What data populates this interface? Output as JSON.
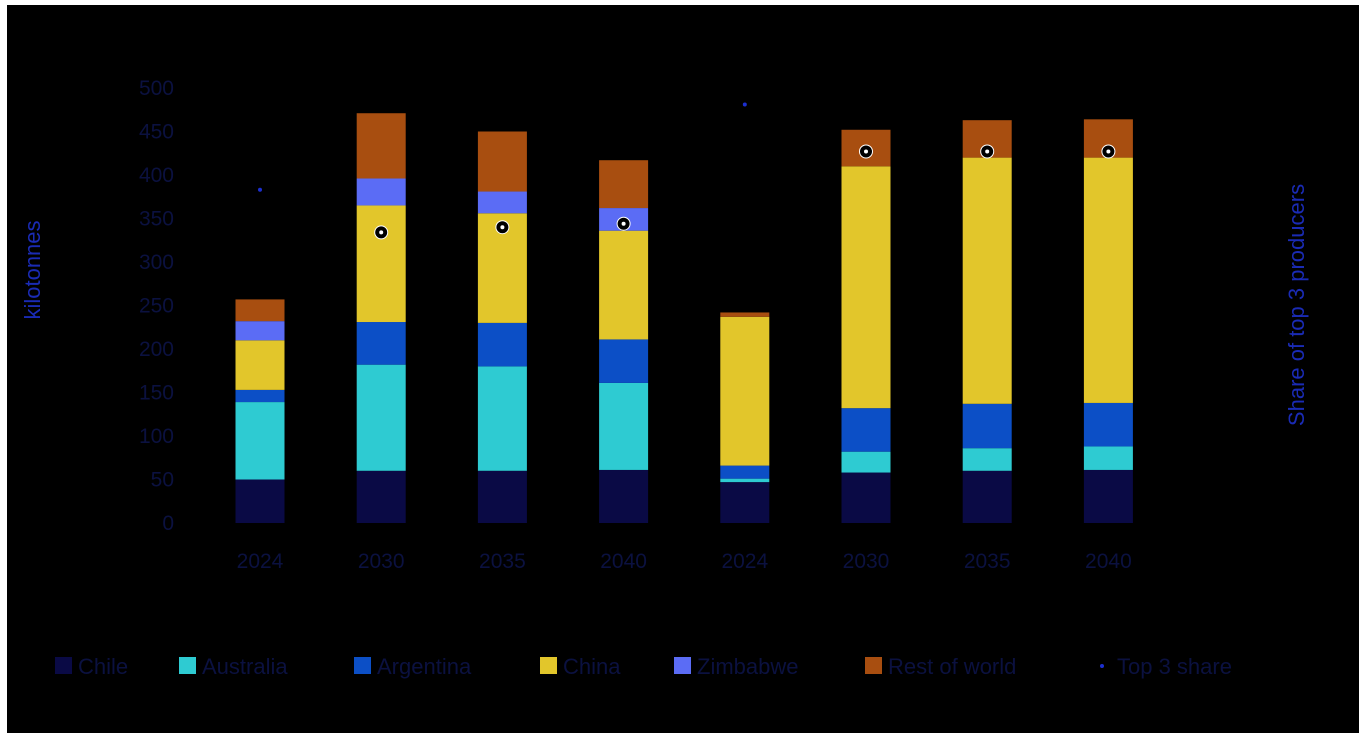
{
  "chart_data": {
    "type": "bar",
    "stacked": true,
    "categories": [
      "2024",
      "2030",
      "2035",
      "2040",
      "2024",
      "2030",
      "2035",
      "2040"
    ],
    "ylabel": "kilotonnes",
    "y2label": "Share of top 3 producers",
    "ylim": [
      0,
      500
    ],
    "yticks": [
      0,
      50,
      100,
      150,
      200,
      250,
      300,
      350,
      400,
      450,
      500
    ],
    "grid": false,
    "legend_position": "bottom",
    "series": [
      {
        "name": "Chile",
        "color": "#0a0a45",
        "values": [
          50,
          60,
          60,
          61,
          47,
          58,
          60,
          61
        ]
      },
      {
        "name": "Australia",
        "color": "#2ecbd2",
        "values": [
          89,
          122,
          120,
          100,
          4,
          24,
          26,
          27
        ]
      },
      {
        "name": "Argentina",
        "color": "#0c4fc6",
        "values": [
          14,
          49,
          50,
          50,
          15,
          50,
          51,
          50
        ]
      },
      {
        "name": "China",
        "color": "#e2c62b",
        "values": [
          57,
          134,
          126,
          125,
          171,
          278,
          283,
          282
        ]
      },
      {
        "name": "Zimbabwe",
        "color": "#5b6cf5",
        "values": [
          22,
          31,
          25,
          26,
          0,
          0,
          0,
          0
        ]
      },
      {
        "name": "Rest of world",
        "color": "#a84e10",
        "values": [
          25,
          75,
          69,
          55,
          5,
          42,
          43,
          44
        ]
      }
    ],
    "line_series": {
      "name": "Top 3 share",
      "marker_color": "#000000",
      "values": [
        383,
        334,
        340,
        344,
        481,
        427,
        427,
        427
      ]
    }
  }
}
